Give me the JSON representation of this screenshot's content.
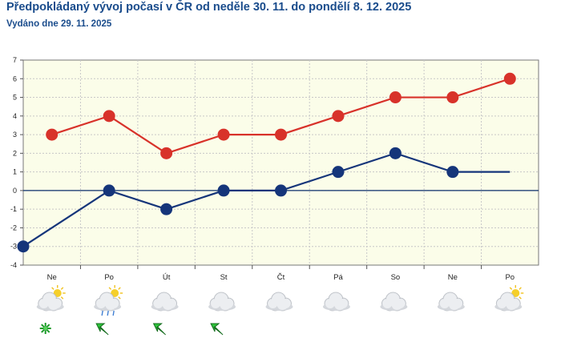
{
  "header": {
    "title": "Předpokládaný vývoj počasí v ČR od neděle 30. 11. do pondělí 8. 12. 2025",
    "issued": "Vydáno dne 29. 11. 2025"
  },
  "colors": {
    "max_series": "#d8322a",
    "min_series": "#15357a",
    "plot_bg": "#fbfde9",
    "zero_line": "#0b2e6a",
    "grid": "#c8c8c8"
  },
  "chart_data": {
    "type": "line",
    "categories": [
      "Ne",
      "Po",
      "Út",
      "St",
      "Čt",
      "Pá",
      "So",
      "Ne",
      "Po"
    ],
    "y_ticks": [
      7,
      6,
      5,
      4,
      3,
      2,
      1,
      0,
      -1,
      -2,
      -3,
      -4
    ],
    "ylim": [
      -4,
      7
    ],
    "grid": true,
    "series": [
      {
        "values": [
          3,
          4,
          2,
          3,
          3,
          4,
          5,
          5,
          6
        ],
        "color": "#d8322a"
      },
      {
        "values": [
          -3,
          0,
          -1,
          0,
          0,
          1,
          2,
          1,
          1
        ],
        "color": "#15357a"
      }
    ]
  },
  "forecast_icons": [
    {
      "day": "Ne",
      "sky": "partly-cloudy-icon",
      "extra": "snowflake-icon"
    },
    {
      "day": "Po",
      "sky": "partly-cloudy-icon",
      "extra": "wind-arrow-icon",
      "precip": "rain"
    },
    {
      "day": "Út",
      "sky": "cloudy-icon",
      "extra": "wind-arrow-icon"
    },
    {
      "day": "St",
      "sky": "cloudy-icon",
      "extra": "wind-arrow-icon"
    },
    {
      "day": "Čt",
      "sky": "cloudy-icon"
    },
    {
      "day": "Pá",
      "sky": "cloudy-icon"
    },
    {
      "day": "So",
      "sky": "cloudy-icon"
    },
    {
      "day": "Ne",
      "sky": "cloudy-icon"
    },
    {
      "day": "Po",
      "sky": "partly-cloudy-icon"
    }
  ]
}
